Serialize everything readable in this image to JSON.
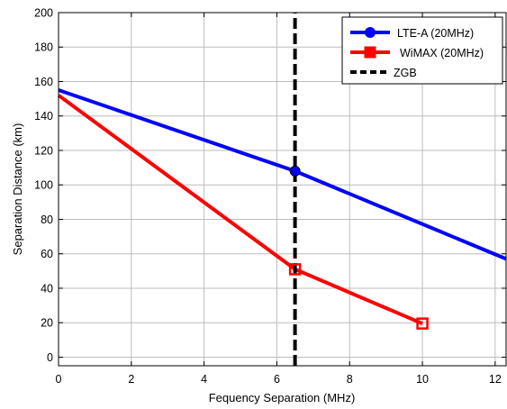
{
  "chart_data": {
    "type": "line",
    "xlabel": "Fequency Separation (MHz)",
    "ylabel": "Separation Distance (km)",
    "xlim": [
      0,
      12.3
    ],
    "ylim": [
      -5,
      200
    ],
    "xticks": [
      0,
      2,
      4,
      6,
      8,
      10,
      12
    ],
    "yticks": [
      0,
      20,
      40,
      60,
      80,
      100,
      120,
      140,
      160,
      180,
      200
    ],
    "grid": true,
    "legend_position": "top-right",
    "series": [
      {
        "name": "LTE-A (20MHz)",
        "color": "#0000ff",
        "marker": "circle",
        "x": [
          0,
          6.5,
          12.3
        ],
        "y": [
          155,
          108,
          57
        ],
        "marker_points": [
          {
            "x": 6.5,
            "y": 108
          }
        ]
      },
      {
        "name": "WiMAX (20MHz)",
        "color": "#ff0000",
        "marker": "square",
        "x": [
          0,
          6.5,
          10
        ],
        "y": [
          152,
          51,
          19.5
        ],
        "marker_points": [
          {
            "x": 6.5,
            "y": 51
          },
          {
            "x": 10,
            "y": 19.5
          }
        ]
      },
      {
        "name": "ZGB",
        "color": "#000000",
        "style": "dashed",
        "x": [
          6.5,
          6.5
        ],
        "y": [
          -5,
          200
        ]
      }
    ]
  }
}
